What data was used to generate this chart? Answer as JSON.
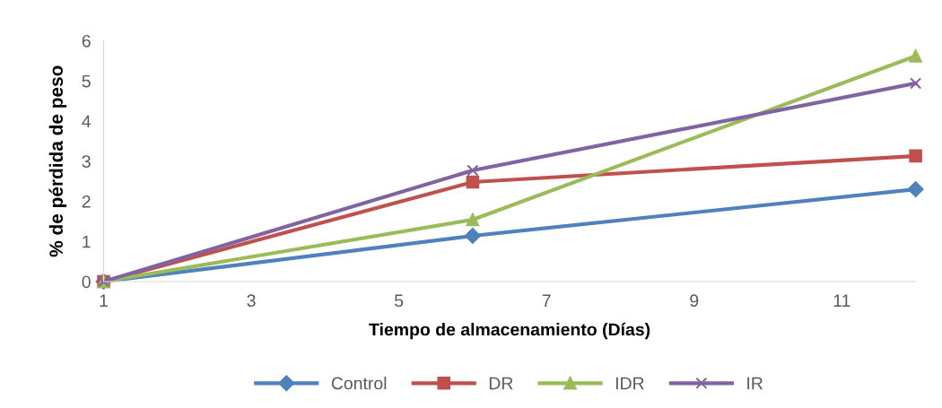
{
  "chart_data": {
    "type": "line",
    "xlabel": "Tiempo de almacenamiento (Días)",
    "ylabel": "% de pérdida de peso",
    "x": [
      1,
      6,
      12
    ],
    "series": [
      {
        "name": "Control",
        "color": "#4f81bd",
        "marker": "diamond",
        "values": [
          0,
          1.14,
          2.3
        ]
      },
      {
        "name": "DR",
        "color": "#c0504d",
        "marker": "square",
        "values": [
          0,
          2.48,
          3.13
        ]
      },
      {
        "name": "IDR",
        "color": "#9bbb59",
        "marker": "triangle",
        "values": [
          0,
          1.54,
          5.62
        ]
      },
      {
        "name": "IR",
        "color": "#8064a2",
        "marker": "cross",
        "values": [
          0,
          2.77,
          4.94
        ]
      }
    ],
    "xlim": [
      1,
      12
    ],
    "xticks": [
      1,
      3,
      5,
      7,
      9,
      11
    ],
    "ylim": [
      0,
      6
    ],
    "yticks": [
      0,
      1,
      2,
      3,
      4,
      5,
      6
    ],
    "grid": false,
    "legend": "bottom",
    "line_style": "solid"
  }
}
